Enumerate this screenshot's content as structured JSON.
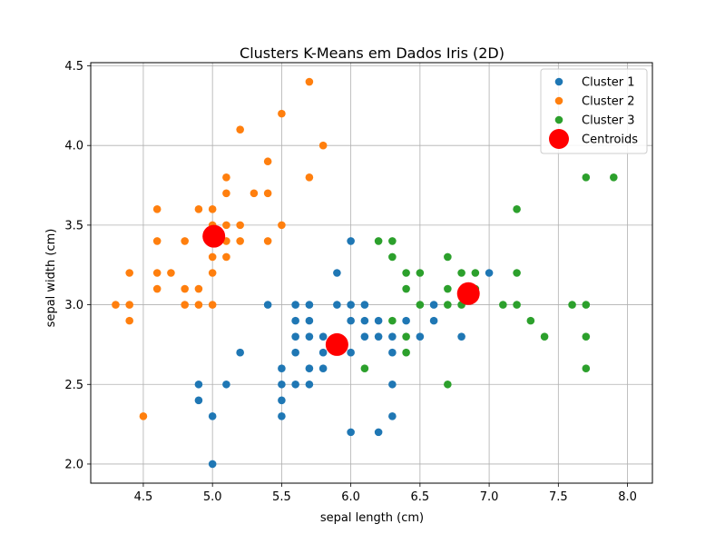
{
  "chart_data": {
    "type": "scatter",
    "title": "Clusters K-Means em Dados Iris (2D)",
    "xlabel": "sepal length (cm)",
    "ylabel": "sepal width (cm)",
    "xlim": [
      4.12,
      8.18
    ],
    "ylim": [
      1.88,
      4.52
    ],
    "xticks": [
      4.5,
      5.0,
      5.5,
      6.0,
      6.5,
      7.0,
      7.5,
      8.0
    ],
    "xtick_labels": [
      "4.5",
      "5.0",
      "5.5",
      "6.0",
      "6.5",
      "7.0",
      "7.5",
      "8.0"
    ],
    "yticks": [
      2.0,
      2.5,
      3.0,
      3.5,
      4.0,
      4.5
    ],
    "ytick_labels": [
      "2.0",
      "2.5",
      "3.0",
      "3.5",
      "4.0",
      "4.5"
    ],
    "grid": true,
    "legend_position": "top-right",
    "series": [
      {
        "name": "Cluster 1",
        "color": "#1f77b4",
        "points": [
          [
            4.9,
            2.4
          ],
          [
            4.9,
            2.5
          ],
          [
            5.0,
            2.0
          ],
          [
            5.0,
            2.3
          ],
          [
            5.1,
            2.5
          ],
          [
            5.2,
            2.7
          ],
          [
            5.4,
            3.0
          ],
          [
            5.5,
            2.3
          ],
          [
            5.5,
            2.4
          ],
          [
            5.5,
            2.5
          ],
          [
            5.5,
            2.6
          ],
          [
            5.6,
            2.5
          ],
          [
            5.6,
            2.7
          ],
          [
            5.6,
            2.8
          ],
          [
            5.6,
            2.9
          ],
          [
            5.6,
            3.0
          ],
          [
            5.7,
            2.5
          ],
          [
            5.7,
            2.6
          ],
          [
            5.7,
            2.8
          ],
          [
            5.7,
            2.9
          ],
          [
            5.7,
            3.0
          ],
          [
            5.8,
            2.6
          ],
          [
            5.8,
            2.7
          ],
          [
            5.8,
            2.8
          ],
          [
            5.9,
            3.0
          ],
          [
            5.9,
            3.2
          ],
          [
            6.0,
            2.2
          ],
          [
            6.0,
            2.7
          ],
          [
            6.0,
            2.9
          ],
          [
            6.0,
            3.0
          ],
          [
            6.0,
            3.4
          ],
          [
            6.1,
            2.8
          ],
          [
            6.1,
            2.9
          ],
          [
            6.1,
            3.0
          ],
          [
            6.2,
            2.2
          ],
          [
            6.2,
            2.8
          ],
          [
            6.2,
            2.9
          ],
          [
            6.3,
            2.3
          ],
          [
            6.3,
            2.5
          ],
          [
            6.3,
            2.7
          ],
          [
            6.3,
            2.8
          ],
          [
            6.4,
            2.9
          ],
          [
            6.5,
            2.8
          ],
          [
            6.6,
            2.9
          ],
          [
            6.6,
            3.0
          ],
          [
            6.8,
            2.8
          ],
          [
            7.0,
            3.2
          ]
        ]
      },
      {
        "name": "Cluster 2",
        "color": "#ff7f0e",
        "points": [
          [
            4.3,
            3.0
          ],
          [
            4.4,
            2.9
          ],
          [
            4.4,
            3.0
          ],
          [
            4.4,
            3.2
          ],
          [
            4.5,
            2.3
          ],
          [
            4.6,
            3.1
          ],
          [
            4.6,
            3.2
          ],
          [
            4.6,
            3.4
          ],
          [
            4.6,
            3.6
          ],
          [
            4.7,
            3.2
          ],
          [
            4.8,
            3.0
          ],
          [
            4.8,
            3.1
          ],
          [
            4.8,
            3.4
          ],
          [
            4.9,
            3.0
          ],
          [
            4.9,
            3.1
          ],
          [
            4.9,
            3.6
          ],
          [
            5.0,
            3.0
          ],
          [
            5.0,
            3.2
          ],
          [
            5.0,
            3.3
          ],
          [
            5.0,
            3.4
          ],
          [
            5.0,
            3.5
          ],
          [
            5.0,
            3.6
          ],
          [
            5.1,
            3.3
          ],
          [
            5.1,
            3.4
          ],
          [
            5.1,
            3.5
          ],
          [
            5.1,
            3.7
          ],
          [
            5.1,
            3.8
          ],
          [
            5.2,
            3.4
          ],
          [
            5.2,
            3.5
          ],
          [
            5.2,
            4.1
          ],
          [
            5.3,
            3.7
          ],
          [
            5.4,
            3.4
          ],
          [
            5.4,
            3.7
          ],
          [
            5.4,
            3.9
          ],
          [
            5.5,
            3.5
          ],
          [
            5.5,
            4.2
          ],
          [
            5.7,
            3.8
          ],
          [
            5.7,
            4.4
          ],
          [
            5.8,
            4.0
          ]
        ]
      },
      {
        "name": "Cluster 3",
        "color": "#2ca02c",
        "points": [
          [
            6.1,
            2.6
          ],
          [
            6.2,
            3.4
          ],
          [
            6.3,
            2.9
          ],
          [
            6.3,
            3.3
          ],
          [
            6.3,
            3.4
          ],
          [
            6.4,
            2.7
          ],
          [
            6.4,
            2.8
          ],
          [
            6.4,
            3.1
          ],
          [
            6.4,
            3.2
          ],
          [
            6.5,
            3.0
          ],
          [
            6.5,
            3.2
          ],
          [
            6.7,
            2.5
          ],
          [
            6.7,
            3.0
          ],
          [
            6.7,
            3.1
          ],
          [
            6.7,
            3.3
          ],
          [
            6.8,
            3.0
          ],
          [
            6.8,
            3.2
          ],
          [
            6.9,
            3.1
          ],
          [
            6.9,
            3.2
          ],
          [
            7.1,
            3.0
          ],
          [
            7.2,
            3.0
          ],
          [
            7.2,
            3.2
          ],
          [
            7.2,
            3.6
          ],
          [
            7.3,
            2.9
          ],
          [
            7.4,
            2.8
          ],
          [
            7.6,
            3.0
          ],
          [
            7.7,
            2.6
          ],
          [
            7.7,
            2.8
          ],
          [
            7.7,
            3.0
          ],
          [
            7.7,
            3.8
          ],
          [
            7.9,
            3.8
          ]
        ]
      },
      {
        "name": "Centroids",
        "color": "#ff0000",
        "marker": "large",
        "points": [
          [
            5.01,
            3.43
          ],
          [
            5.9,
            2.75
          ],
          [
            6.85,
            3.07
          ]
        ]
      }
    ]
  }
}
